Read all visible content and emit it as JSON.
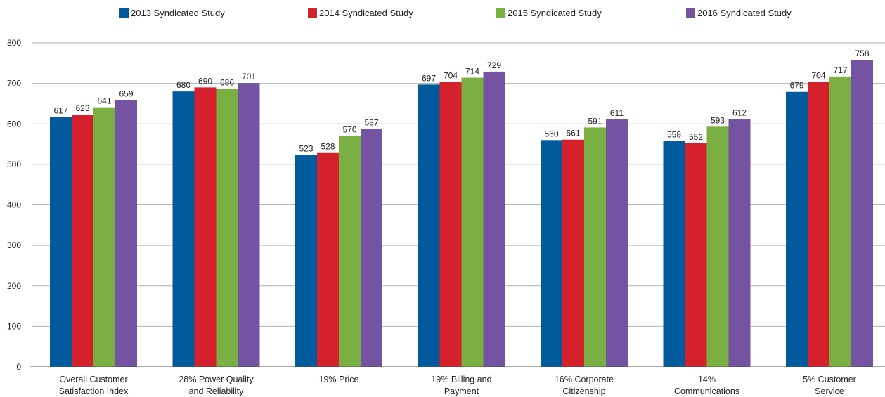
{
  "chart_data": {
    "type": "bar",
    "categories": [
      [
        "Overall Customer",
        "Satisfaction Index"
      ],
      [
        "28% Power Quality",
        "and Reliability"
      ],
      [
        "19% Price"
      ],
      [
        "19% Billing and",
        "Payment"
      ],
      [
        "16% Corporate",
        "Citizenship"
      ],
      [
        "14%",
        "Communications"
      ],
      [
        "5% Customer",
        "Service"
      ]
    ],
    "series": [
      {
        "name": "2013 Syndicated Study",
        "color": "#005a9c",
        "values": [
          617,
          680,
          523,
          697,
          560,
          558,
          679
        ]
      },
      {
        "name": "2014 Syndicated Study",
        "color": "#d4212c",
        "values": [
          623,
          690,
          528,
          704,
          561,
          552,
          704
        ]
      },
      {
        "name": "2015 Syndicated Study",
        "color": "#79b041",
        "values": [
          641,
          686,
          570,
          714,
          591,
          593,
          717
        ]
      },
      {
        "name": "2016 Syndicated Study",
        "color": "#7553a3",
        "values": [
          659,
          701,
          587,
          729,
          611,
          612,
          758
        ]
      }
    ],
    "data_labels": [
      [
        "617",
        "680",
        "523",
        "697",
        "560",
        "558",
        "679"
      ],
      [
        "623",
        "690",
        "528",
        "704",
        "561",
        "552",
        "704"
      ],
      [
        "641",
        "686",
        "570",
        "714",
        "591",
        "593",
        "717"
      ],
      [
        "659",
        "701",
        "587",
        "729",
        "611",
        "612",
        "758"
      ]
    ],
    "ylim": [
      0,
      800
    ],
    "yticks": [
      "0",
      "100",
      "200",
      "300",
      "400",
      "500",
      "600",
      "700",
      "800"
    ],
    "grid": true,
    "legend_position": "top"
  }
}
